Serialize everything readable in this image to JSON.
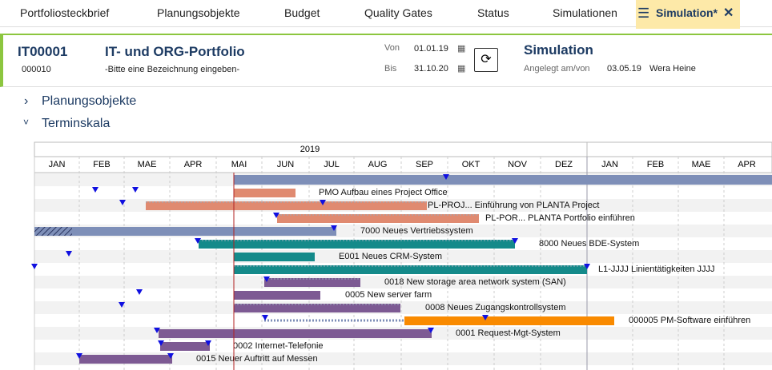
{
  "tabs": [
    "Portfoliosteckbrief",
    "Planungsobjekte",
    "Budget",
    "Quality Gates",
    "Status",
    "Simulationen"
  ],
  "active_tab": "Simulation*",
  "header": {
    "id": "IT00001",
    "sub_id": "000010",
    "title": "IT- und ORG-Portfolio",
    "description": "-Bitte eine Bezeichnung eingeben-",
    "from_label": "Von",
    "from": "01.01.19",
    "to_label": "Bis",
    "to": "31.10.20",
    "mode": "Simulation",
    "created_label": "Angelegt am/von",
    "created_date": "03.05.19",
    "created_by": "Wera Heine"
  },
  "sections": [
    "Planungsobjekte",
    "Terminskala"
  ],
  "gantt": {
    "year": "2019",
    "months": [
      "JAN",
      "FEB",
      "MAE",
      "APR",
      "MAI",
      "JUN",
      "JUL",
      "AUG",
      "SEP",
      "OKT",
      "NOV",
      "DEZ",
      "JAN",
      "FEB",
      "MAE",
      "APR"
    ],
    "rows": [
      "PMO Aufbau eines Project Office",
      "PL-PROJ... Einführung von PLANTA Project",
      "PL-POR... PLANTA Portfolio einführen",
      "7000 Neues Vertriebssystem",
      "8000 Neues BDE-System",
      "E001 Neues CRM-System",
      "L1-JJJJ Linientätigkeiten JJJJ",
      "0018 New storage area network system (SAN)",
      "0005 New server farm",
      "0008 Neues Zugangskontrollsystem",
      "000005 PM-Software einführen",
      "0001 Request-Mgt-System",
      "0002 Internet-Telefonie",
      "0015 Neuer Auftritt auf Messen"
    ]
  }
}
